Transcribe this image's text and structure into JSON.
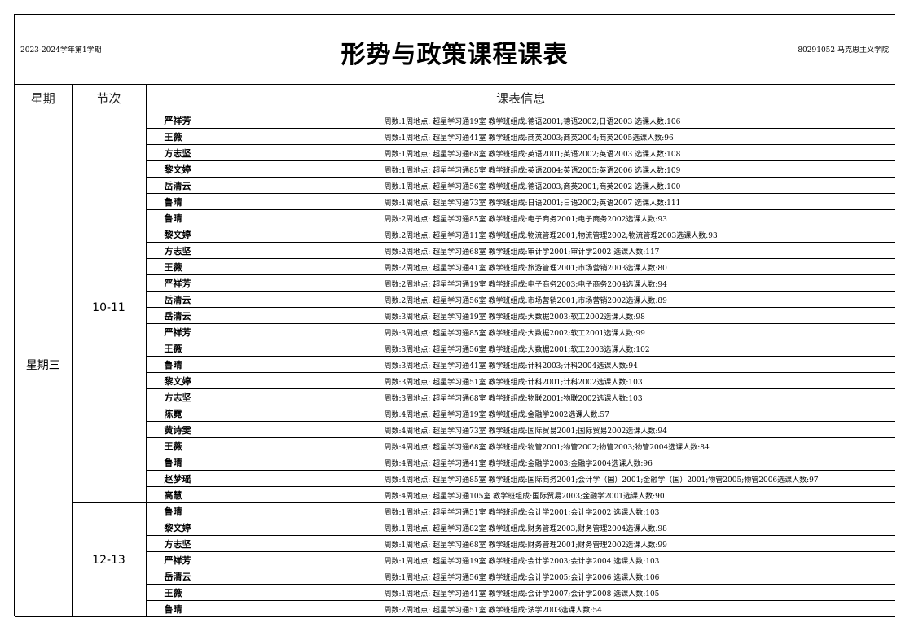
{
  "header": {
    "term": "2023-2024学年第1学期",
    "title": "形势与政策课程课表",
    "dept": "80291052 马克思主义学院"
  },
  "columns": {
    "day": "星期",
    "slot": "节次",
    "info": "课表信息"
  },
  "day": "星期三",
  "groups": [
    {
      "slot": "10-11",
      "rows": [
        {
          "teacher": "严祥芳",
          "info": "周数:1周地点: 超星学习通19室 教学班组成:德语2001;德语2002;日语2003 选课人数:106"
        },
        {
          "teacher": "王薇",
          "info": "周数:1周地点: 超星学习通41室 教学班组成:商英2003;商英2004;商英2005选课人数:96"
        },
        {
          "teacher": "方志坚",
          "info": "周数:1周地点: 超星学习通68室 教学班组成:英语2001;英语2002;英语2003 选课人数:108"
        },
        {
          "teacher": "黎文婷",
          "info": "周数:1周地点: 超星学习通85室 教学班组成:英语2004;英语2005;英语2006 选课人数:109"
        },
        {
          "teacher": "岳清云",
          "info": "周数:1周地点: 超星学习通56室 教学班组成:德语2003;商英2001;商英2002 选课人数:100"
        },
        {
          "teacher": "鲁晴",
          "info": "周数:1周地点: 超星学习通73室 教学班组成:日语2001;日语2002;英语2007 选课人数:111"
        },
        {
          "teacher": "鲁晴",
          "info": "周数:2周地点: 超星学习通85室 教学班组成:电子商务2001;电子商务2002选课人数:93"
        },
        {
          "teacher": "黎文婷",
          "info": "周数:2周地点: 超星学习通11室 教学班组成:物流管理2001;物流管理2002;物流管理2003选课人数:93"
        },
        {
          "teacher": "方志坚",
          "info": "周数:2周地点: 超星学习通68室 教学班组成:审计学2001;审计学2002 选课人数:117"
        },
        {
          "teacher": "王薇",
          "info": "周数:2周地点: 超星学习通41室 教学班组成:旅游管理2001;市场营销2003选课人数:80"
        },
        {
          "teacher": "严祥芳",
          "info": "周数:2周地点: 超星学习通19室 教学班组成:电子商务2003;电子商务2004选课人数:94"
        },
        {
          "teacher": "岳清云",
          "info": "周数:2周地点: 超星学习通56室 教学班组成:市场营销2001;市场营销2002选课人数:89"
        },
        {
          "teacher": "岳清云",
          "info": "周数:3周地点: 超星学习通19室 教学班组成:大数据2003;软工2002选课人数:98"
        },
        {
          "teacher": "严祥芳",
          "info": "周数:3周地点: 超星学习通85室 教学班组成:大数据2002;软工2001选课人数:99"
        },
        {
          "teacher": "王薇",
          "info": "周数:3周地点: 超星学习通56室 教学班组成:大数据2001;软工2003选课人数:102"
        },
        {
          "teacher": "鲁晴",
          "info": "周数:3周地点: 超星学习通41室 教学班组成:计科2003;计科2004选课人数:94"
        },
        {
          "teacher": "黎文婷",
          "info": "周数:3周地点: 超星学习通51室 教学班组成:计科2001;计科2002选课人数:103"
        },
        {
          "teacher": "方志坚",
          "info": "周数:3周地点: 超星学习通68室 教学班组成:物联2001;物联2002选课人数:103"
        },
        {
          "teacher": "陈霓",
          "info": "周数:4周地点: 超星学习通19室 教学班组成:金融学2002选课人数:57"
        },
        {
          "teacher": "黄诗雯",
          "info": "周数:4周地点: 超星学习通73室 教学班组成:国际贸易2001;国际贸易2002选课人数:94"
        },
        {
          "teacher": "王薇",
          "info": "周数:4周地点: 超星学习通68室 教学班组成:物管2001;物管2002;物管2003;物管2004选课人数:84"
        },
        {
          "teacher": "鲁晴",
          "info": "周数:4周地点: 超星学习通41室 教学班组成:金融学2003;金融学2004选课人数:96"
        },
        {
          "teacher": "赵梦瑶",
          "info": "周数:4周地点: 超星学习通85室 教学班组成:国际商务2001;会计学（国）2001;金融学（国）2001;物管2005;物管2006选课人数:97"
        },
        {
          "teacher": "高慧",
          "info": "周数:4周地点: 超星学习通105室 教学班组成:国际贸易2003;金融学2001选课人数:90"
        }
      ]
    },
    {
      "slot": "12-13",
      "rows": [
        {
          "teacher": "鲁晴",
          "info": "周数:1周地点: 超星学习通51室 教学班组成:会计学2001;会计学2002 选课人数:103"
        },
        {
          "teacher": "黎文婷",
          "info": "周数:1周地点: 超星学习通82室 教学班组成:财务管理2003;财务管理2004选课人数:98"
        },
        {
          "teacher": "方志坚",
          "info": "周数:1周地点: 超星学习通68室 教学班组成:财务管理2001;财务管理2002选课人数:99"
        },
        {
          "teacher": "严祥芳",
          "info": "周数:1周地点: 超星学习通19室 教学班组成:会计学2003;会计学2004 选课人数:103"
        },
        {
          "teacher": "岳清云",
          "info": "周数:1周地点: 超星学习通56室 教学班组成:会计学2005;会计学2006 选课人数:106"
        },
        {
          "teacher": "王薇",
          "info": "周数:1周地点: 超星学习通41室 教学班组成:会计学2007;会计学2008 选课人数:105"
        },
        {
          "teacher": "鲁晴",
          "info": "周数:2周地点: 超星学习通51室 教学班组成:法学2003选课人数:54"
        }
      ]
    }
  ]
}
